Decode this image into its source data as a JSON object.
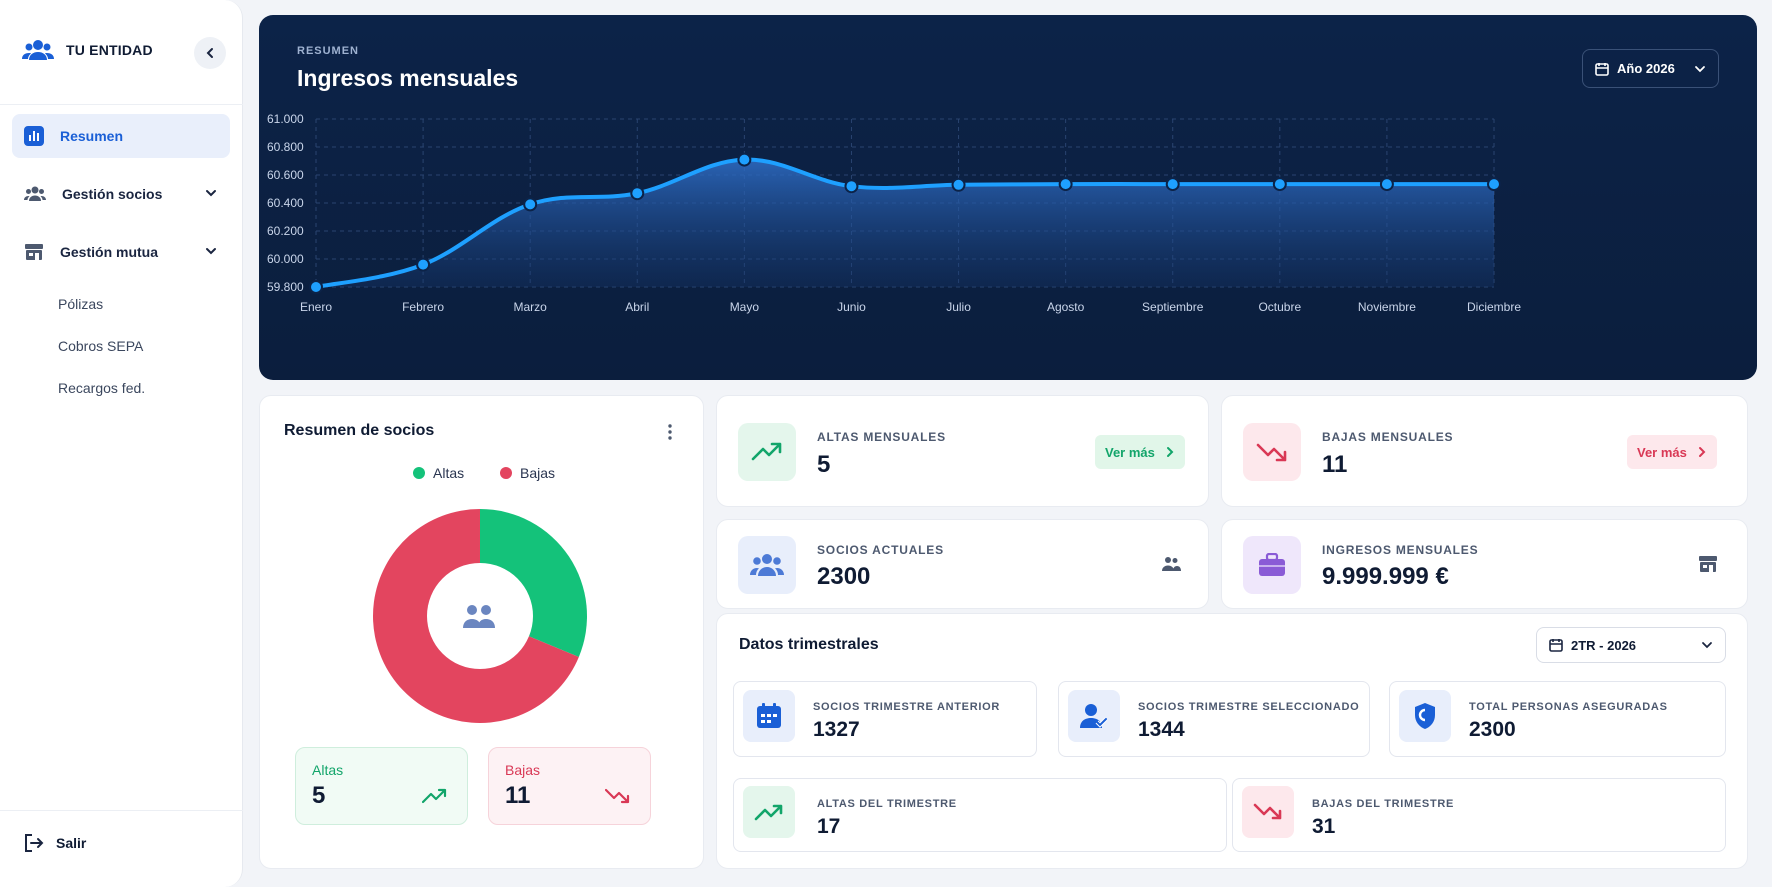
{
  "sidebar": {
    "brand": "TU ENTIDAD",
    "items": [
      {
        "label": "Resumen",
        "icon": "bar-chart-icon",
        "active": true
      },
      {
        "label": "Gestión socios",
        "icon": "users-icon"
      },
      {
        "label": "Gestión mutua",
        "icon": "store-icon"
      }
    ],
    "subitems": [
      "Pólizas",
      "Cobros SEPA",
      "Recargos fed."
    ],
    "logout": "Salir"
  },
  "hero": {
    "eyebrow": "RESUMEN",
    "title": "Ingresos mensuales",
    "year": "Año 2026"
  },
  "chart_data": {
    "type": "area",
    "title": "Ingresos mensuales",
    "categories": [
      "Enero",
      "Febrero",
      "Marzo",
      "Abril",
      "Mayo",
      "Junio",
      "Julio",
      "Agosto",
      "Septiembre",
      "Octubre",
      "Noviembre",
      "Diciembre"
    ],
    "values": [
      59800,
      59960,
      60390,
      60470,
      60710,
      60520,
      60530,
      60535,
      60535,
      60535,
      60535,
      60535
    ],
    "ylim": [
      59800,
      61000
    ],
    "yticks": [
      59800,
      60000,
      60200,
      60400,
      60600,
      60800,
      61000
    ],
    "ytick_labels": [
      "59.800",
      "60.000",
      "60.200",
      "60.400",
      "60.600",
      "60.800",
      "61.000"
    ],
    "grid": true,
    "color": "#1ea0ff"
  },
  "socios": {
    "title": "Resumen de socios",
    "legend": [
      {
        "label": "Altas",
        "color": "#14c27a"
      },
      {
        "label": "Bajas",
        "color": "#e3455f"
      }
    ],
    "donut": [
      {
        "label": "Altas",
        "value": 5
      },
      {
        "label": "Bajas",
        "value": 11
      }
    ],
    "altas_label": "Altas",
    "altas_value": "5",
    "bajas_label": "Bajas",
    "bajas_value": "11"
  },
  "stats": {
    "altas": {
      "label": "ALTAS MENSUALES",
      "value": "5",
      "link": "Ver más"
    },
    "bajas": {
      "label": "BAJAS MENSUALES",
      "value": "11",
      "link": "Ver más"
    },
    "socios": {
      "label": "SOCIOS ACTUALES",
      "value": "2300"
    },
    "ingresos": {
      "label": "INGRESOS MENSUALES",
      "value": "9.999.999 €"
    }
  },
  "trimestral": {
    "title": "Datos trimestrales",
    "period": "2TR - 2026",
    "items": [
      {
        "label": "SOCIOS TRIMESTRE ANTERIOR",
        "value": "1327"
      },
      {
        "label": "SOCIOS TRIMESTRE SELECCIONADO",
        "value": "1344"
      },
      {
        "label": "TOTAL PERSONAS ASEGURADAS",
        "value": "2300"
      },
      {
        "label": "ALTAS DEL TRIMESTRE",
        "value": "17"
      },
      {
        "label": "BAJAS DEL TRIMESTRE",
        "value": "31"
      }
    ]
  },
  "colors": {
    "accent": "#1a5fd6",
    "green": "#14c27a",
    "red": "#e3455f",
    "hero": "#0c2348"
  }
}
